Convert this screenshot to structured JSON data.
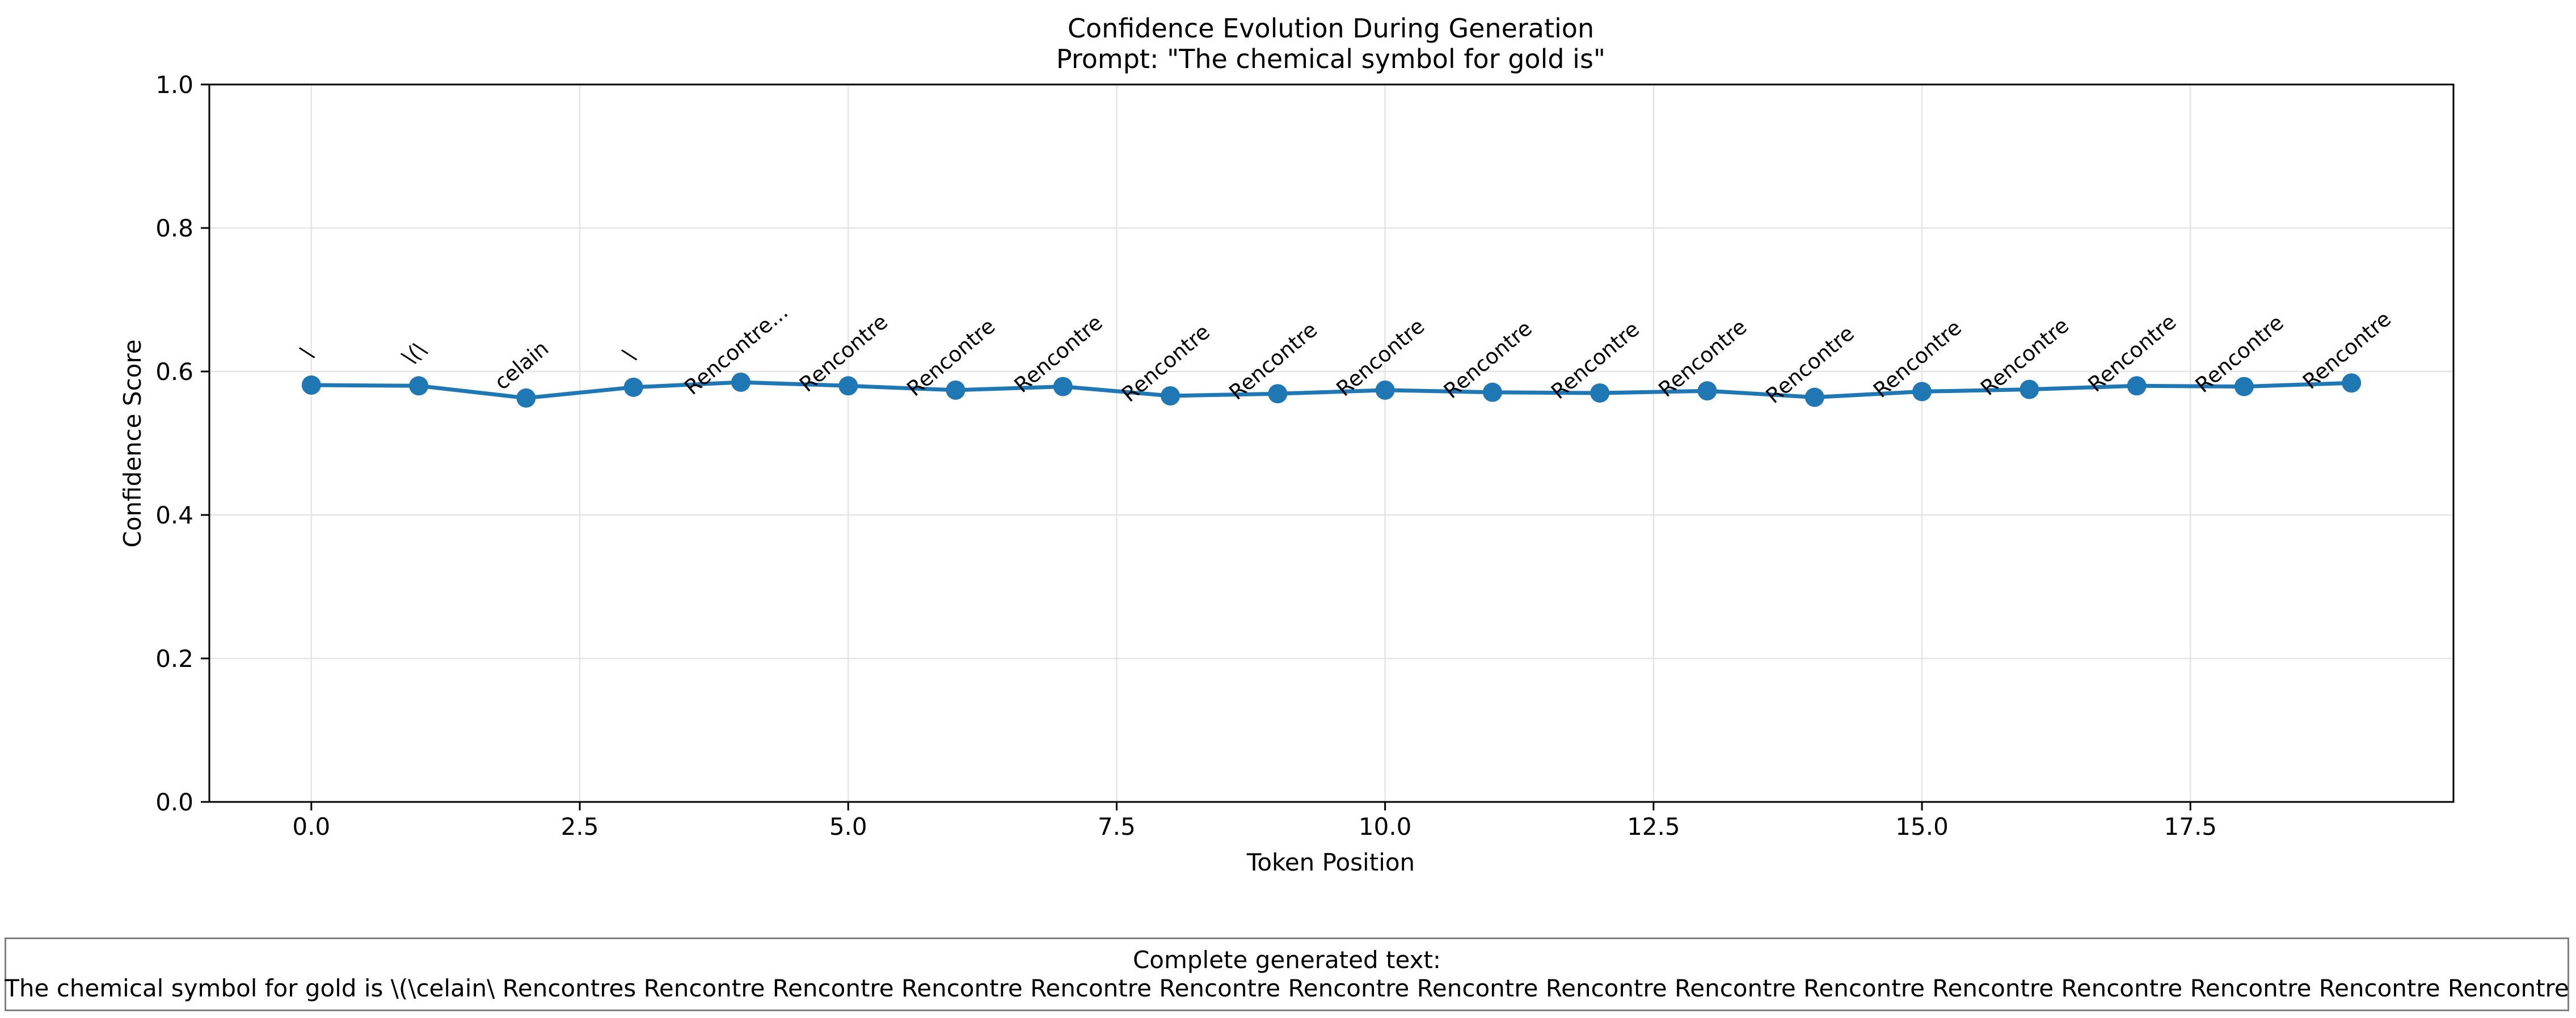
{
  "chart_data": {
    "type": "line",
    "title": "Confidence Evolution During Generation",
    "subtitle": "Prompt: \"The chemical symbol for gold is\"",
    "xlabel": "Token Position",
    "ylabel": "Confidence Score",
    "xlim": [
      -0.95,
      19.95
    ],
    "ylim": [
      0.0,
      1.0
    ],
    "x_ticks": [
      0.0,
      2.5,
      5.0,
      7.5,
      10.0,
      12.5,
      15.0,
      17.5
    ],
    "x_tick_labels": [
      "0.0",
      "2.5",
      "5.0",
      "7.5",
      "10.0",
      "12.5",
      "15.0",
      "17.5"
    ],
    "y_ticks": [
      0.0,
      0.2,
      0.4,
      0.6,
      0.8,
      1.0
    ],
    "y_tick_labels": [
      "0.0",
      "0.2",
      "0.4",
      "0.6",
      "0.8",
      "1.0"
    ],
    "grid": true,
    "color": "#1f77b4",
    "x": [
      0,
      1,
      2,
      3,
      4,
      5,
      6,
      7,
      8,
      9,
      10,
      11,
      12,
      13,
      14,
      15,
      16,
      17,
      18,
      19
    ],
    "y": [
      0.581,
      0.58,
      0.563,
      0.578,
      0.585,
      0.58,
      0.574,
      0.579,
      0.566,
      0.569,
      0.574,
      0.571,
      0.57,
      0.573,
      0.564,
      0.572,
      0.575,
      0.58,
      0.579,
      0.584
    ],
    "annotations": [
      "\\",
      "\\(\\",
      "celain",
      "\\",
      "Rencontre...",
      "Rencontre",
      "Rencontre",
      "Rencontre",
      "Rencontre",
      "Rencontre",
      "Rencontre",
      "Rencontre",
      "Rencontre",
      "Rencontre",
      "Rencontre",
      "Rencontre",
      "Rencontre",
      "Rencontre",
      "Rencontre",
      "Rencontre"
    ]
  },
  "caption": {
    "heading": "Complete generated text:",
    "text": "The chemical symbol for gold is \\(\\celain\\ Rencontres Rencontre Rencontre Rencontre Rencontre Rencontre Rencontre Rencontre Rencontre Rencontre Rencontre Rencontre Rencontre Rencontre Rencontre Rencontre"
  }
}
